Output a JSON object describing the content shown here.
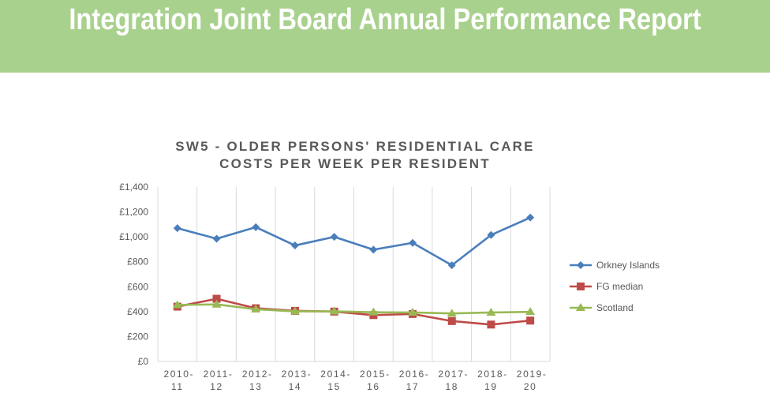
{
  "header": {
    "title": "Integration Joint Board Annual Performance Report",
    "background_color": "#a9d18e"
  },
  "chart_data": {
    "type": "line",
    "title_line1": "SW5 - OLDER PERSONS' RESIDENTIAL CARE",
    "title_line2": "COSTS PER WEEK PER RESIDENT",
    "categories": [
      [
        "2010-",
        "11"
      ],
      [
        "2011-",
        "12"
      ],
      [
        "2012-",
        "13"
      ],
      [
        "2013-",
        "14"
      ],
      [
        "2014-",
        "15"
      ],
      [
        "2015-",
        "16"
      ],
      [
        "2016-",
        "17"
      ],
      [
        "2017-",
        "18"
      ],
      [
        "2018-",
        "19"
      ],
      [
        "2019-",
        "20"
      ]
    ],
    "ylim": [
      0,
      1400
    ],
    "yticks": [
      0,
      200,
      400,
      600,
      800,
      1000,
      1200,
      1400
    ],
    "ytick_labels": [
      "£0",
      "£200",
      "£400",
      "£600",
      "£800",
      "£1,000",
      "£1,200",
      "£1,400"
    ],
    "grid": "vertical",
    "legend_position": "right",
    "series": [
      {
        "name": "Orkney Islands",
        "color": "#4a7ebb",
        "marker": "diamond",
        "values": [
          1070,
          985,
          1078,
          931,
          1000,
          897,
          952,
          772,
          1015,
          1155
        ]
      },
      {
        "name": "FG median",
        "color": "#be4b48",
        "marker": "square",
        "values": [
          440,
          503,
          427,
          406,
          400,
          372,
          381,
          324,
          296,
          328
        ]
      },
      {
        "name": "Scotland",
        "color": "#98b954",
        "marker": "triangle",
        "values": [
          453,
          458,
          419,
          402,
          402,
          395,
          393,
          385,
          393,
          398
        ]
      }
    ]
  }
}
